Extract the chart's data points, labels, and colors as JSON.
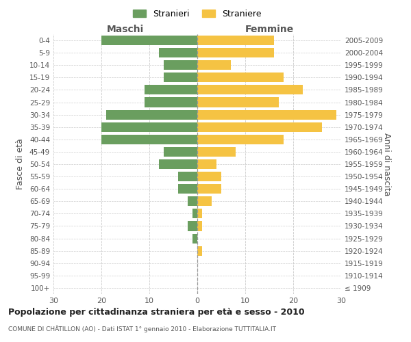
{
  "age_groups_bottom_to_top": [
    "0-4",
    "5-9",
    "10-14",
    "15-19",
    "20-24",
    "25-29",
    "30-34",
    "35-39",
    "40-44",
    "45-49",
    "50-54",
    "55-59",
    "60-64",
    "65-69",
    "70-74",
    "75-79",
    "80-84",
    "85-89",
    "90-94",
    "95-99",
    "100+"
  ],
  "birth_years_bottom_to_top": [
    "2005-2009",
    "2000-2004",
    "1995-1999",
    "1990-1994",
    "1985-1989",
    "1980-1984",
    "1975-1979",
    "1970-1974",
    "1965-1969",
    "1960-1964",
    "1955-1959",
    "1950-1954",
    "1945-1949",
    "1940-1944",
    "1935-1939",
    "1930-1934",
    "1925-1929",
    "1920-1924",
    "1915-1919",
    "1910-1914",
    "≤ 1909"
  ],
  "maschi_bottom_to_top": [
    20,
    8,
    7,
    7,
    11,
    11,
    19,
    20,
    20,
    7,
    8,
    4,
    4,
    2,
    1,
    2,
    1,
    0,
    0,
    0,
    0
  ],
  "femmine_bottom_to_top": [
    16,
    16,
    7,
    18,
    22,
    17,
    29,
    26,
    18,
    8,
    4,
    5,
    5,
    3,
    1,
    1,
    0,
    1,
    0,
    0,
    0
  ],
  "maschi_color": "#6a9e5f",
  "femmine_color": "#f5c343",
  "title": "Popolazione per cittadinanza straniera per età e sesso - 2010",
  "subtitle": "COMUNE DI CHÂTILLON (AO) - Dati ISTAT 1° gennaio 2010 - Elaborazione TUTTITALIA.IT",
  "label_maschi": "Maschi",
  "label_femmine": "Femmine",
  "ylabel_left": "Fasce di età",
  "ylabel_right": "Anni di nascita",
  "legend_maschi": "Stranieri",
  "legend_femmine": "Straniere",
  "xlim": 30,
  "background_color": "#ffffff",
  "grid_color": "#cccccc"
}
